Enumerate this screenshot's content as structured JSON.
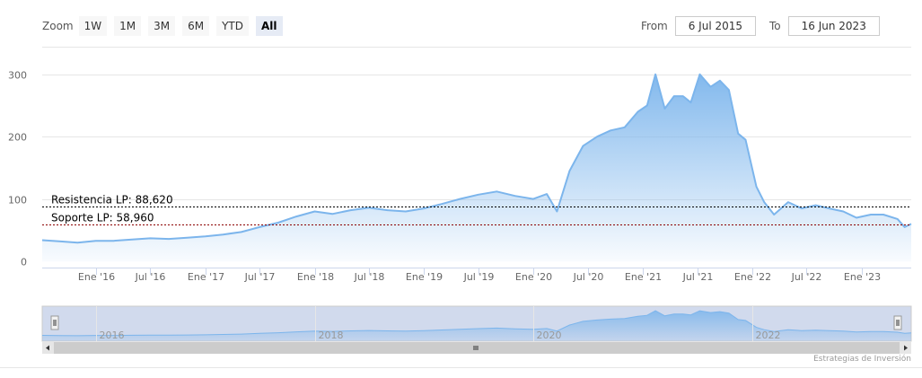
{
  "range_selector": {
    "zoom_label": "Zoom",
    "buttons": [
      "1W",
      "1M",
      "3M",
      "6M",
      "YTD",
      "All"
    ],
    "active": "All",
    "from_label": "From",
    "from_value": "6 Jul 2015",
    "to_label": "To",
    "to_value": "16 Jun 2023"
  },
  "credit": "Estrategias de Inversión",
  "colors": {
    "series": "#7cb5ec",
    "resistance": "#000000",
    "support": "#8b0000"
  },
  "chart_data": {
    "type": "area",
    "title": "",
    "xlabel": "",
    "ylabel": "",
    "x_ticks": [
      "Ene '16",
      "Jul '16",
      "Ene '17",
      "Jul '17",
      "Ene '18",
      "Jul '18",
      "Ene '19",
      "Jul '19",
      "Ene '20",
      "Jul '20",
      "Ene '21",
      "Jul '21",
      "Ene '22",
      "Jul '22",
      "Ene '23"
    ],
    "y_ticks": [
      0,
      100,
      200,
      300
    ],
    "ylim": [
      -10,
      330
    ],
    "xlim": [
      "2015-07-06",
      "2023-06-16"
    ],
    "grid": true,
    "series": [
      {
        "x": [
          "2015-07-06",
          "2015-09-01",
          "2015-11-01",
          "2016-01-01",
          "2016-03-01",
          "2016-05-01",
          "2016-07-01",
          "2016-09-01",
          "2016-11-01",
          "2017-01-01",
          "2017-03-01",
          "2017-05-01",
          "2017-07-01",
          "2017-09-01",
          "2017-11-01",
          "2018-01-01",
          "2018-03-01",
          "2018-05-01",
          "2018-07-01",
          "2018-09-01",
          "2018-11-01",
          "2019-01-01",
          "2019-03-01",
          "2019-05-01",
          "2019-07-01",
          "2019-09-01",
          "2019-11-01",
          "2020-01-01",
          "2020-02-15",
          "2020-03-20",
          "2020-05-01",
          "2020-06-15",
          "2020-08-01",
          "2020-09-15",
          "2020-11-01",
          "2020-12-15",
          "2021-01-15",
          "2021-02-12",
          "2021-03-15",
          "2021-04-15",
          "2021-05-15",
          "2021-06-10",
          "2021-07-10",
          "2021-08-15",
          "2021-09-15",
          "2021-10-15",
          "2021-11-15",
          "2021-12-10",
          "2022-01-15",
          "2022-02-10",
          "2022-03-15",
          "2022-05-01",
          "2022-06-15",
          "2022-08-01",
          "2022-09-15",
          "2022-11-01",
          "2022-12-15",
          "2023-02-01",
          "2023-03-15",
          "2023-05-01",
          "2023-05-25",
          "2023-06-16"
        ],
        "y": [
          34,
          32,
          30,
          33,
          33,
          35,
          37,
          36,
          38,
          40,
          43,
          47,
          55,
          62,
          72,
          80,
          76,
          82,
          86,
          82,
          80,
          85,
          92,
          100,
          107,
          112,
          105,
          100,
          108,
          80,
          145,
          185,
          200,
          210,
          215,
          240,
          250,
          300,
          245,
          265,
          265,
          255,
          300,
          280,
          290,
          275,
          205,
          195,
          120,
          95,
          75,
          95,
          85,
          90,
          85,
          80,
          70,
          75,
          75,
          68,
          55,
          60
        ]
      }
    ],
    "annotations": [
      {
        "name": "Resistencia LP",
        "label": "Resistencia LP: 88,620",
        "value": 88.62
      },
      {
        "name": "Soporte LP",
        "label": "Soporte LP: 58,960",
        "value": 58.96
      }
    ],
    "navigator_labels": [
      "2016",
      "2018",
      "2020",
      "2022"
    ]
  }
}
